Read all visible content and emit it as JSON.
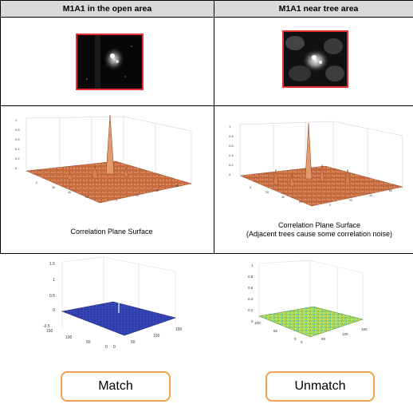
{
  "table": {
    "col1_header": "M1A1 in the open area",
    "col2_header": "M1A1 near tree area",
    "col1_caption": "Correlation Plane Surface",
    "col2_caption_line1": "Correlation Plane Surface",
    "col2_caption_line2": "(Adjacent trees cause some correlation noise)"
  },
  "plots": {
    "surface_left_zticks": [
      "1",
      "0.8",
      "0.6",
      "0.4",
      "0.2",
      "0"
    ],
    "surface_right_zticks": [
      "1",
      "0.8",
      "0.6",
      "0.4",
      "0.2",
      "0"
    ],
    "match_z": [
      "1.5",
      "1",
      "0.5",
      "0",
      "-0.5"
    ],
    "match_y": [
      "150",
      "100",
      "50",
      "0"
    ],
    "match_x": [
      "0",
      "50",
      "100",
      "150"
    ],
    "unmatch_z": [
      "1",
      "0.8",
      "0.6",
      "0.4",
      "0.2",
      "0"
    ],
    "unmatch_y": [
      "100",
      "50",
      "0"
    ],
    "unmatch_x": [
      "0",
      "50",
      "100",
      "150"
    ]
  },
  "buttons": {
    "match_label": "Match",
    "unmatch_label": "Unmatch"
  },
  "colors": {
    "header_bg": "#d9d9d9",
    "thumb_border": "#e53030",
    "surface_orange": "#d9774a",
    "match_blue": "#2c3aa6",
    "unmatch_green": "#9fd45a",
    "pill_border": "#f0a050"
  }
}
